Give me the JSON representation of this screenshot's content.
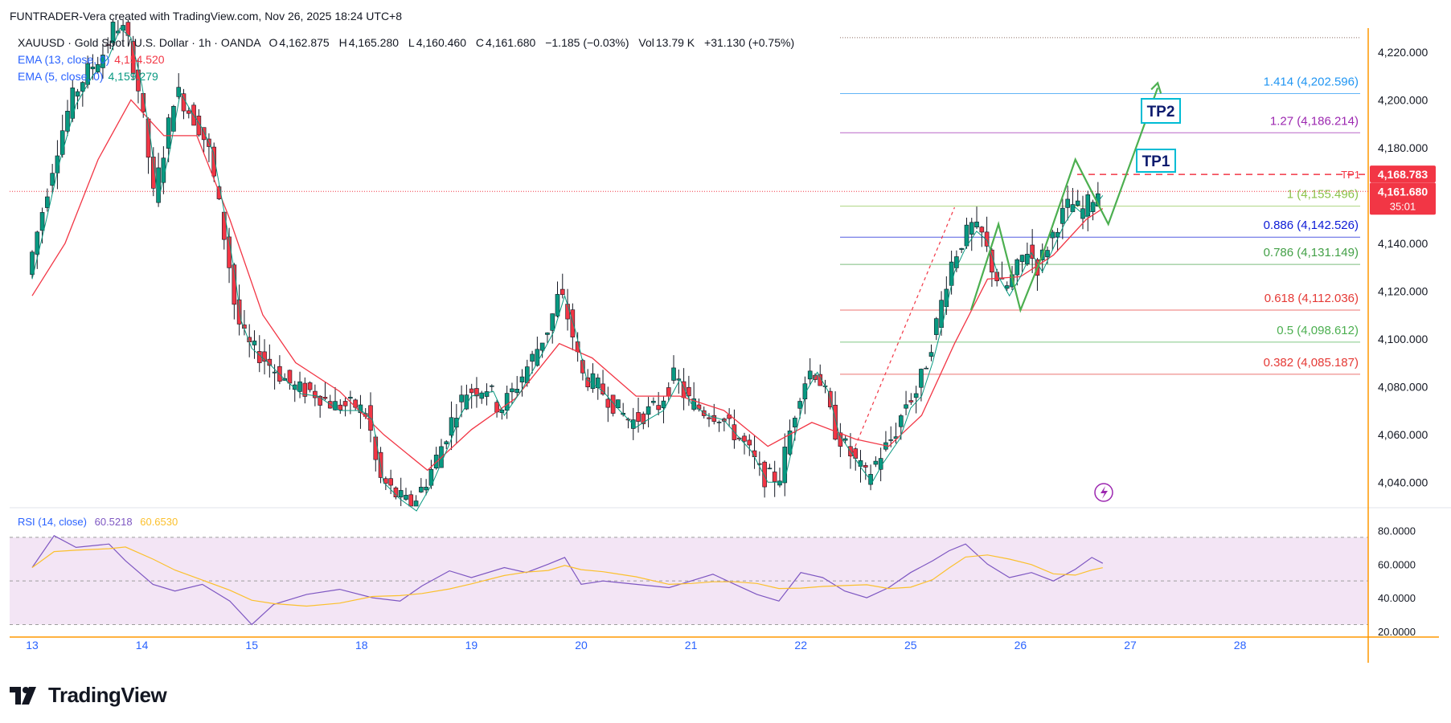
{
  "header": {
    "credit": "FUNTRADER-Vera created with TradingView.com, Nov 26, 2025 18:24 UTC+8"
  },
  "legend": {
    "symbol": "XAUUSD · Gold Spot / U.S. Dollar · 1h · OANDA",
    "o_label": "O",
    "o": "4,162.875",
    "h_label": "H",
    "h": "4,165.280",
    "l_label": "L",
    "l": "4,160.460",
    "c_label": "C",
    "c": "4,161.680",
    "change": "−1.185 (−0.03%)",
    "vol_label": "Vol",
    "vol": "13.79 K",
    "vol_change": "+31.130 (+0.75%)",
    "ema1_label": "EMA (13, close, 0)",
    "ema1_value": "4,154.520",
    "ema2_label": "EMA (5, close, 0)",
    "ema2_value": "4,159.279",
    "rsi_label": "RSI (14, close)",
    "rsi_value": "60.5218",
    "rsi_ma_value": "60.6530"
  },
  "colors": {
    "up": "#089981",
    "down": "#f23645",
    "ema13": "#f23645",
    "ema5": "#089981",
    "rsi": "#7e57c2",
    "rsi_ma": "#fbc02d",
    "rsi_band": "#f3e5f5",
    "axis_text": "#131722",
    "date_text": "#2962ff",
    "price_tag": "#f23645",
    "current_tag": "#f23645",
    "tp_box": "#00bcd4",
    "projection": "#4caf50"
  },
  "price_axis": {
    "ticks": [
      "4,220.000",
      "4,200.000",
      "4,180.000",
      "4,140.000",
      "4,120.000",
      "4,100.000",
      "4,080.000",
      "4,060.000",
      "4,040.000"
    ],
    "tp1_tag": "4,168.783",
    "tp1_label": "TP1",
    "current_tag": "4,161.680",
    "countdown": "35:01"
  },
  "rsi_axis": {
    "ticks": [
      "80.0000",
      "60.0000",
      "40.0000",
      "20.0000"
    ]
  },
  "date_axis": {
    "labels": [
      "13",
      "14",
      "15",
      "18",
      "19",
      "20",
      "21",
      "22",
      "25",
      "26",
      "27",
      "28"
    ]
  },
  "fib_levels": [
    {
      "label": "1.414 (4,202.596)",
      "color": "#2196f3"
    },
    {
      "label": "1.27 (4,186.214)",
      "color": "#9c27b0"
    },
    {
      "label": "1 (4,155.496)",
      "color": "#8bc34a"
    },
    {
      "label": "0.886 (4,142.526)",
      "color": "#0d1bd6"
    },
    {
      "label": "0.786 (4,131.149)",
      "color": "#43a047"
    },
    {
      "label": "0.618 (4,112.036)",
      "color": "#e53935"
    },
    {
      "label": "0.5 (4,098.612)",
      "color": "#4caf50"
    },
    {
      "label": "0.382 (4,085.187)",
      "color": "#e53935"
    }
  ],
  "targets": {
    "tp1": "TP1",
    "tp2": "TP2"
  },
  "brand": {
    "name": "TradingView"
  },
  "chart_data": {
    "type": "candlestick",
    "symbol": "XAUUSD",
    "timeframe": "1h",
    "price_range": [
      4030,
      4230
    ],
    "rsi_range": [
      18,
      86
    ],
    "x_range_days": [
      0,
      11.5
    ],
    "date_labels_x_days": [
      0,
      1,
      2,
      3,
      4,
      5,
      6,
      7,
      8,
      9,
      10,
      11
    ],
    "price_series_approx": [
      [
        0.0,
        4127
      ],
      [
        0.12,
        4150
      ],
      [
        0.25,
        4176
      ],
      [
        0.4,
        4200
      ],
      [
        0.55,
        4212
      ],
      [
        0.7,
        4220
      ],
      [
        0.8,
        4232
      ],
      [
        0.9,
        4228
      ],
      [
        1.0,
        4208
      ],
      [
        1.08,
        4185
      ],
      [
        1.15,
        4160
      ],
      [
        1.25,
        4180
      ],
      [
        1.35,
        4205
      ],
      [
        1.45,
        4197
      ],
      [
        1.55,
        4190
      ],
      [
        1.65,
        4180
      ],
      [
        1.75,
        4155
      ],
      [
        1.85,
        4128
      ],
      [
        1.9,
        4110
      ],
      [
        2.0,
        4098
      ],
      [
        2.15,
        4092
      ],
      [
        2.3,
        4085
      ],
      [
        2.45,
        4079
      ],
      [
        2.6,
        4078
      ],
      [
        2.8,
        4072
      ],
      [
        3.0,
        4072
      ],
      [
        3.1,
        4068
      ],
      [
        3.2,
        4042
      ],
      [
        3.35,
        4035
      ],
      [
        3.5,
        4030
      ],
      [
        3.65,
        4042
      ],
      [
        3.8,
        4058
      ],
      [
        3.9,
        4070
      ],
      [
        4.0,
        4078
      ],
      [
        4.2,
        4080
      ],
      [
        4.3,
        4070
      ],
      [
        4.45,
        4080
      ],
      [
        4.6,
        4092
      ],
      [
        4.75,
        4105
      ],
      [
        4.85,
        4120
      ],
      [
        4.95,
        4105
      ],
      [
        5.05,
        4085
      ],
      [
        5.2,
        4080
      ],
      [
        5.35,
        4072
      ],
      [
        5.5,
        4065
      ],
      [
        5.6,
        4068
      ],
      [
        5.75,
        4072
      ],
      [
        5.9,
        4085
      ],
      [
        6.0,
        4075
      ],
      [
        6.15,
        4070
      ],
      [
        6.3,
        4068
      ],
      [
        6.45,
        4060
      ],
      [
        6.55,
        4055
      ],
      [
        6.7,
        4042
      ],
      [
        6.85,
        4042
      ],
      [
        6.95,
        4062
      ],
      [
        7.05,
        4080
      ],
      [
        7.15,
        4088
      ],
      [
        7.25,
        4080
      ],
      [
        7.35,
        4062
      ],
      [
        7.45,
        4055
      ],
      [
        7.55,
        4048
      ],
      [
        7.65,
        4042
      ],
      [
        7.75,
        4050
      ],
      [
        7.9,
        4060
      ],
      [
        8.0,
        4073
      ],
      [
        8.1,
        4078
      ],
      [
        8.2,
        4092
      ],
      [
        8.3,
        4110
      ],
      [
        8.4,
        4130
      ],
      [
        8.5,
        4140
      ],
      [
        8.6,
        4147
      ],
      [
        8.7,
        4143
      ],
      [
        8.8,
        4128
      ],
      [
        8.9,
        4120
      ],
      [
        9.0,
        4128
      ],
      [
        9.1,
        4138
      ],
      [
        9.2,
        4130
      ],
      [
        9.3,
        4140
      ],
      [
        9.4,
        4150
      ],
      [
        9.5,
        4157
      ],
      [
        9.6,
        4153
      ],
      [
        9.7,
        4159
      ],
      [
        9.75,
        4162
      ]
    ],
    "ema13_approx": [
      [
        0.0,
        4118
      ],
      [
        0.3,
        4140
      ],
      [
        0.6,
        4175
      ],
      [
        0.9,
        4200
      ],
      [
        1.2,
        4185
      ],
      [
        1.5,
        4185
      ],
      [
        1.8,
        4150
      ],
      [
        2.1,
        4110
      ],
      [
        2.4,
        4090
      ],
      [
        2.8,
        4078
      ],
      [
        3.2,
        4060
      ],
      [
        3.6,
        4045
      ],
      [
        4.0,
        4062
      ],
      [
        4.4,
        4075
      ],
      [
        4.8,
        4098
      ],
      [
        5.1,
        4092
      ],
      [
        5.5,
        4076
      ],
      [
        5.9,
        4076
      ],
      [
        6.3,
        4070
      ],
      [
        6.7,
        4055
      ],
      [
        7.1,
        4065
      ],
      [
        7.5,
        4058
      ],
      [
        7.8,
        4055
      ],
      [
        8.1,
        4068
      ],
      [
        8.4,
        4098
      ],
      [
        8.7,
        4125
      ],
      [
        9.0,
        4126
      ],
      [
        9.3,
        4135
      ],
      [
        9.6,
        4150
      ],
      [
        9.75,
        4154.52
      ]
    ],
    "rsi_approx": [
      [
        0.0,
        58
      ],
      [
        0.2,
        77
      ],
      [
        0.4,
        70
      ],
      [
        0.7,
        72
      ],
      [
        0.85,
        62
      ],
      [
        1.1,
        48
      ],
      [
        1.3,
        44
      ],
      [
        1.55,
        48
      ],
      [
        1.8,
        38
      ],
      [
        2.0,
        24
      ],
      [
        2.2,
        36
      ],
      [
        2.5,
        42
      ],
      [
        2.8,
        45
      ],
      [
        3.1,
        40
      ],
      [
        3.35,
        38
      ],
      [
        3.55,
        47
      ],
      [
        3.8,
        56
      ],
      [
        4.0,
        52
      ],
      [
        4.3,
        58
      ],
      [
        4.5,
        55
      ],
      [
        4.7,
        60
      ],
      [
        4.85,
        64
      ],
      [
        5.0,
        48
      ],
      [
        5.2,
        50
      ],
      [
        5.5,
        48
      ],
      [
        5.8,
        46
      ],
      [
        6.0,
        50
      ],
      [
        6.2,
        54
      ],
      [
        6.4,
        48
      ],
      [
        6.6,
        42
      ],
      [
        6.8,
        38
      ],
      [
        7.0,
        55
      ],
      [
        7.2,
        52
      ],
      [
        7.4,
        44
      ],
      [
        7.6,
        40
      ],
      [
        7.8,
        46
      ],
      [
        8.0,
        55
      ],
      [
        8.2,
        62
      ],
      [
        8.35,
        68
      ],
      [
        8.5,
        72
      ],
      [
        8.7,
        60
      ],
      [
        8.9,
        52
      ],
      [
        9.1,
        55
      ],
      [
        9.3,
        50
      ],
      [
        9.5,
        57
      ],
      [
        9.65,
        64
      ],
      [
        9.75,
        60.52
      ]
    ],
    "projection": [
      [
        8.55,
        4112
      ],
      [
        8.8,
        4148
      ],
      [
        9.0,
        4112
      ],
      [
        9.2,
        4135
      ],
      [
        9.5,
        4175
      ],
      [
        9.8,
        4148
      ],
      [
        10.25,
        4205
      ]
    ]
  }
}
